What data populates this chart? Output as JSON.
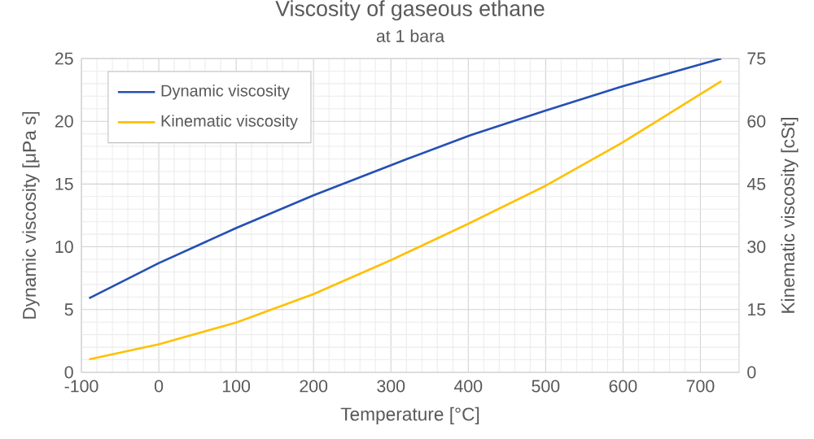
{
  "chart_data": {
    "type": "line",
    "title": "Viscosity of gaseous ethane",
    "subtitle": "at 1 bara",
    "xlabel": "Temperature  [°C]",
    "ylabel": "Dynamic viscosity [μPa s]",
    "y2label": "Kinematic viscosity [cSt]",
    "xlim": [
      -100,
      750
    ],
    "xticks": [
      -100,
      0,
      100,
      200,
      300,
      400,
      500,
      600,
      700
    ],
    "ylim": [
      0,
      25
    ],
    "yticks": [
      0,
      5,
      10,
      15,
      20,
      25
    ],
    "y2lim": [
      0,
      75
    ],
    "y2ticks": [
      0,
      15,
      30,
      45,
      60,
      75
    ],
    "grid": true,
    "legend": "top left",
    "series": [
      {
        "name": "Dynamic viscosity",
        "color": "#2550b4",
        "x": [
          -90,
          0,
          100,
          200,
          321,
          403,
          500,
          600,
          727
        ],
        "values": [
          5.9,
          8.7,
          11.5,
          14.1,
          17.0,
          18.9,
          20.85,
          22.8,
          25.0
        ]
      },
      {
        "name": "Kinematic viscosity",
        "color": "#ffc000",
        "axis": "y2",
        "x": [
          -90,
          0,
          100,
          200,
          300,
          400,
          500,
          600,
          727
        ],
        "values": [
          3.1,
          6.7,
          11.9,
          18.7,
          26.8,
          35.5,
          44.6,
          55.0,
          69.6
        ]
      }
    ]
  }
}
